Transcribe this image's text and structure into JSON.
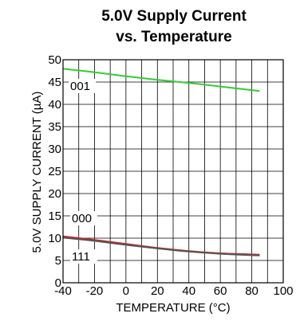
{
  "chart_data": {
    "type": "line",
    "title": "5.0V Supply Current",
    "subtitle": "vs. Temperature",
    "xlabel": "TEMPERATURE (°C)",
    "ylabel": "5.0V SUPPLY CURRENT (µA)",
    "xlim": [
      -40,
      100
    ],
    "ylim": [
      0,
      50
    ],
    "x_ticks": [
      -40,
      -20,
      0,
      20,
      40,
      60,
      80,
      100
    ],
    "y_ticks": [
      0,
      5,
      10,
      15,
      20,
      25,
      30,
      35,
      40,
      45,
      50
    ],
    "grid": true,
    "series": [
      {
        "name": "001",
        "color": "#33cc33",
        "x": [
          -40,
          -20,
          0,
          20,
          40,
          60,
          85
        ],
        "y": [
          48.0,
          47.2,
          46.3,
          45.5,
          44.8,
          44.0,
          43.0
        ]
      },
      {
        "name": "000",
        "color": "#cc2222",
        "x": [
          -40,
          -20,
          0,
          20,
          40,
          60,
          85
        ],
        "y": [
          10.4,
          9.6,
          8.7,
          7.8,
          7.1,
          6.6,
          6.3
        ]
      },
      {
        "name": "111",
        "color": "#555555",
        "x": [
          -40,
          -20,
          0,
          20,
          40,
          60,
          85
        ],
        "y": [
          10.1,
          9.4,
          8.5,
          7.7,
          7.0,
          6.5,
          6.1
        ]
      }
    ],
    "series_labels": [
      {
        "text": "001"
      },
      {
        "text": "000"
      },
      {
        "text": "111"
      }
    ]
  }
}
